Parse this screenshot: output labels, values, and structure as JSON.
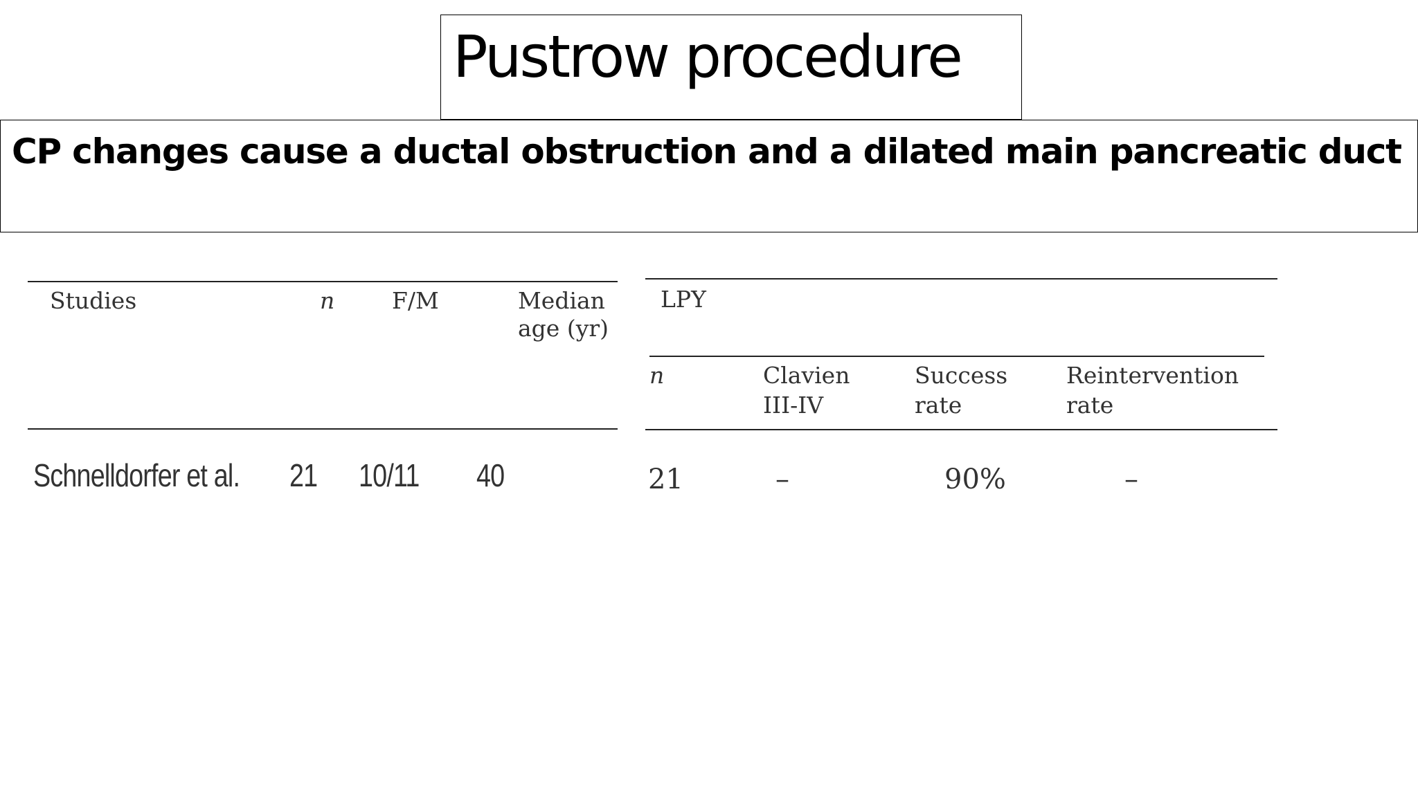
{
  "slide": {
    "title": "Pustrow procedure",
    "subtitle": "CP changes cause a ductal obstruction and a dilated main pancreatic duct"
  },
  "left_table": {
    "headers": {
      "studies": "Studies",
      "n": "n",
      "fm": "F/M",
      "age_line1": "Median",
      "age_line2": "age (yr)"
    },
    "row": {
      "study": "Schnelldorfer et al.",
      "n": "21",
      "fm": "10/11",
      "age": "40"
    }
  },
  "right_table": {
    "group_header": "LPY",
    "headers": {
      "n": "n",
      "clavien_line1": "Clavien",
      "clavien_line2": "III-IV",
      "success_line1": "Success",
      "success_line2": "rate",
      "reint_line1": "Reintervention",
      "reint_line2": "rate"
    },
    "row": {
      "n": "21",
      "clavien": "–",
      "success": "90%",
      "reint": "–"
    }
  }
}
